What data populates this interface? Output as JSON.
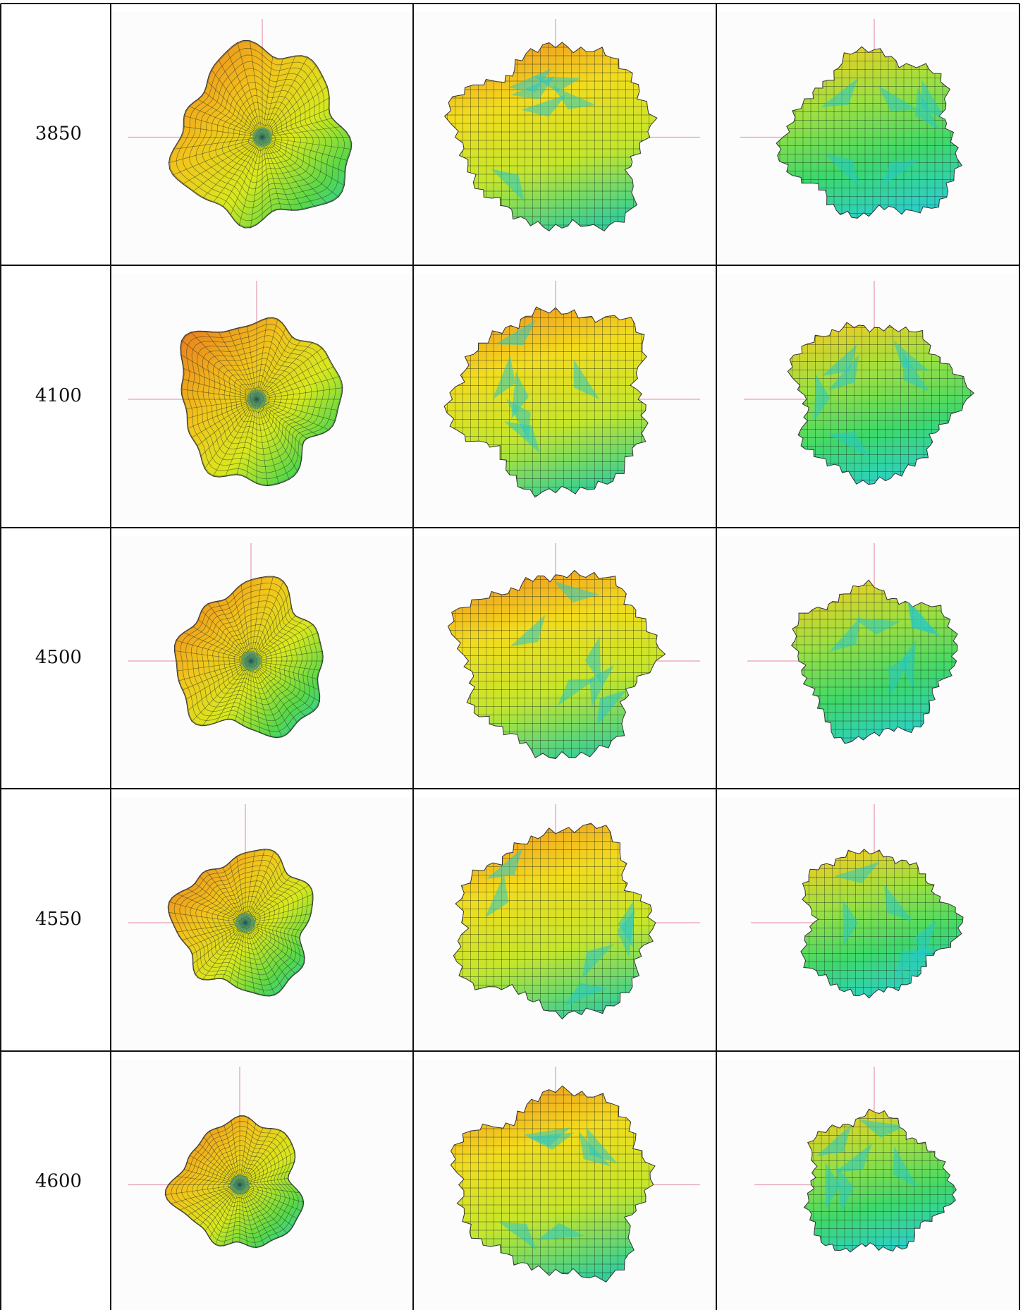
{
  "table": {
    "rows": [
      [
        "3850"
      ],
      [
        "4100"
      ],
      [
        "4500"
      ],
      [
        "4550"
      ],
      [
        "4600"
      ]
    ]
  }
}
